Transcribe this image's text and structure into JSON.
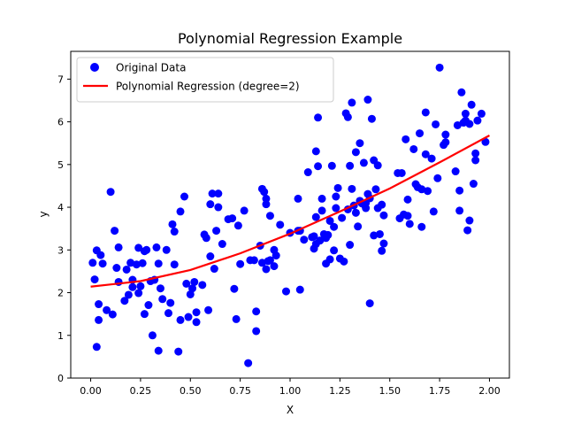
{
  "chart_data": {
    "type": "scatter",
    "title": "Polynomial Regression Example",
    "xlabel": "X",
    "ylabel": "y",
    "xlim": [
      -0.1,
      2.1
    ],
    "ylim": [
      0,
      7.65
    ],
    "xticks": [
      0.0,
      0.25,
      0.5,
      0.75,
      1.0,
      1.25,
      1.5,
      1.75,
      2.0
    ],
    "xtick_labels": [
      "0.00",
      "0.25",
      "0.50",
      "0.75",
      "1.00",
      "1.25",
      "1.50",
      "1.75",
      "2.00"
    ],
    "yticks": [
      0,
      1,
      2,
      3,
      4,
      5,
      6,
      7
    ],
    "ytick_labels": [
      "0",
      "1",
      "2",
      "3",
      "4",
      "5",
      "6",
      "7"
    ],
    "grid": false,
    "legend_position": "top-left",
    "series": [
      {
        "name": "Original Data",
        "kind": "scatter",
        "color": "#0000ff",
        "points": [
          [
            0.01,
            2.7
          ],
          [
            0.02,
            2.31
          ],
          [
            0.03,
            2.99
          ],
          [
            0.03,
            0.73
          ],
          [
            0.04,
            1.36
          ],
          [
            0.04,
            1.73
          ],
          [
            0.05,
            2.88
          ],
          [
            0.06,
            2.68
          ],
          [
            0.08,
            1.59
          ],
          [
            0.1,
            4.36
          ],
          [
            0.11,
            1.49
          ],
          [
            0.12,
            3.45
          ],
          [
            0.13,
            2.58
          ],
          [
            0.14,
            3.06
          ],
          [
            0.14,
            2.25
          ],
          [
            0.17,
            1.81
          ],
          [
            0.18,
            2.54
          ],
          [
            0.19,
            1.95
          ],
          [
            0.2,
            2.7
          ],
          [
            0.21,
            2.3
          ],
          [
            0.21,
            2.13
          ],
          [
            0.23,
            2.66
          ],
          [
            0.24,
            1.99
          ],
          [
            0.24,
            3.05
          ],
          [
            0.25,
            2.15
          ],
          [
            0.26,
            2.69
          ],
          [
            0.27,
            2.97
          ],
          [
            0.27,
            1.5
          ],
          [
            0.28,
            3.0
          ],
          [
            0.29,
            1.71
          ],
          [
            0.3,
            2.27
          ],
          [
            0.31,
            1.0
          ],
          [
            0.32,
            2.3
          ],
          [
            0.33,
            3.06
          ],
          [
            0.34,
            2.68
          ],
          [
            0.34,
            0.64
          ],
          [
            0.35,
            2.1
          ],
          [
            0.36,
            1.85
          ],
          [
            0.38,
            3.0
          ],
          [
            0.39,
            1.52
          ],
          [
            0.4,
            1.76
          ],
          [
            0.41,
            3.6
          ],
          [
            0.42,
            2.66
          ],
          [
            0.42,
            3.43
          ],
          [
            0.44,
            0.62
          ],
          [
            0.45,
            1.36
          ],
          [
            0.45,
            3.9
          ],
          [
            0.47,
            4.25
          ],
          [
            0.48,
            2.21
          ],
          [
            0.49,
            1.43
          ],
          [
            0.5,
            1.96
          ],
          [
            0.51,
            2.1
          ],
          [
            0.52,
            2.25
          ],
          [
            0.53,
            1.54
          ],
          [
            0.53,
            1.31
          ],
          [
            0.56,
            2.18
          ],
          [
            0.57,
            3.36
          ],
          [
            0.58,
            3.28
          ],
          [
            0.59,
            1.59
          ],
          [
            0.6,
            4.07
          ],
          [
            0.6,
            2.85
          ],
          [
            0.61,
            4.32
          ],
          [
            0.62,
            2.56
          ],
          [
            0.63,
            3.45
          ],
          [
            0.64,
            4.32
          ],
          [
            0.64,
            4.0
          ],
          [
            0.66,
            3.14
          ],
          [
            0.69,
            3.72
          ],
          [
            0.71,
            3.74
          ],
          [
            0.72,
            2.09
          ],
          [
            0.73,
            1.38
          ],
          [
            0.74,
            3.57
          ],
          [
            0.75,
            2.67
          ],
          [
            0.77,
            3.92
          ],
          [
            0.79,
            0.35
          ],
          [
            0.8,
            2.76
          ],
          [
            0.82,
            2.76
          ],
          [
            0.83,
            1.1
          ],
          [
            0.83,
            1.56
          ],
          [
            0.85,
            3.1
          ],
          [
            0.86,
            4.43
          ],
          [
            0.86,
            2.7
          ],
          [
            0.87,
            4.36
          ],
          [
            0.88,
            4.2
          ],
          [
            0.88,
            4.07
          ],
          [
            0.88,
            2.55
          ],
          [
            0.89,
            2.74
          ],
          [
            0.9,
            3.8
          ],
          [
            0.9,
            2.76
          ],
          [
            0.92,
            2.62
          ],
          [
            0.92,
            3.0
          ],
          [
            0.93,
            2.87
          ],
          [
            0.95,
            3.59
          ],
          [
            0.98,
            2.03
          ],
          [
            1.0,
            3.4
          ],
          [
            1.04,
            4.2
          ],
          [
            1.04,
            3.45
          ],
          [
            1.05,
            2.07
          ],
          [
            1.05,
            3.45
          ],
          [
            1.07,
            3.24
          ],
          [
            1.09,
            4.82
          ],
          [
            1.11,
            3.3
          ],
          [
            1.12,
            3.32
          ],
          [
            1.12,
            3.03
          ],
          [
            1.13,
            3.14
          ],
          [
            1.13,
            5.31
          ],
          [
            1.13,
            3.77
          ],
          [
            1.14,
            6.1
          ],
          [
            1.14,
            4.96
          ],
          [
            1.15,
            3.22
          ],
          [
            1.16,
            4.2
          ],
          [
            1.16,
            3.92
          ],
          [
            1.17,
            3.37
          ],
          [
            1.18,
            2.68
          ],
          [
            1.18,
            3.28
          ],
          [
            1.19,
            3.35
          ],
          [
            1.2,
            3.68
          ],
          [
            1.2,
            2.78
          ],
          [
            1.21,
            4.97
          ],
          [
            1.22,
            3.54
          ],
          [
            1.22,
            2.99
          ],
          [
            1.23,
            4.25
          ],
          [
            1.23,
            3.98
          ],
          [
            1.24,
            4.45
          ],
          [
            1.25,
            2.8
          ],
          [
            1.26,
            3.75
          ],
          [
            1.27,
            2.73
          ],
          [
            1.28,
            6.2
          ],
          [
            1.29,
            6.11
          ],
          [
            1.29,
            3.95
          ],
          [
            1.3,
            4.97
          ],
          [
            1.3,
            3.12
          ],
          [
            1.31,
            6.45
          ],
          [
            1.31,
            4.43
          ],
          [
            1.32,
            4.04
          ],
          [
            1.33,
            3.87
          ],
          [
            1.33,
            5.29
          ],
          [
            1.34,
            3.55
          ],
          [
            1.35,
            5.5
          ],
          [
            1.35,
            4.15
          ],
          [
            1.36,
            4.09
          ],
          [
            1.37,
            5.04
          ],
          [
            1.37,
            4.07
          ],
          [
            1.38,
            4.1
          ],
          [
            1.38,
            3.98
          ],
          [
            1.39,
            4.31
          ],
          [
            1.39,
            6.52
          ],
          [
            1.4,
            4.21
          ],
          [
            1.4,
            1.75
          ],
          [
            1.41,
            6.07
          ],
          [
            1.42,
            5.1
          ],
          [
            1.42,
            3.34
          ],
          [
            1.43,
            4.42
          ],
          [
            1.44,
            3.98
          ],
          [
            1.44,
            4.98
          ],
          [
            1.45,
            3.37
          ],
          [
            1.46,
            4.06
          ],
          [
            1.46,
            2.98
          ],
          [
            1.47,
            3.81
          ],
          [
            1.47,
            3.15
          ],
          [
            1.54,
            4.8
          ],
          [
            1.55,
            3.74
          ],
          [
            1.56,
            4.8
          ],
          [
            1.57,
            3.83
          ],
          [
            1.58,
            5.59
          ],
          [
            1.59,
            3.8
          ],
          [
            1.59,
            4.18
          ],
          [
            1.6,
            3.61
          ],
          [
            1.62,
            5.36
          ],
          [
            1.63,
            4.54
          ],
          [
            1.64,
            4.47
          ],
          [
            1.65,
            5.73
          ],
          [
            1.66,
            4.42
          ],
          [
            1.66,
            3.54
          ],
          [
            1.68,
            5.24
          ],
          [
            1.68,
            6.22
          ],
          [
            1.69,
            4.38
          ],
          [
            1.71,
            5.14
          ],
          [
            1.72,
            3.9
          ],
          [
            1.73,
            5.94
          ],
          [
            1.74,
            4.68
          ],
          [
            1.75,
            7.27
          ],
          [
            1.77,
            5.46
          ],
          [
            1.78,
            5.7
          ],
          [
            1.78,
            5.52
          ],
          [
            1.83,
            4.84
          ],
          [
            1.84,
            5.92
          ],
          [
            1.85,
            4.39
          ],
          [
            1.85,
            3.92
          ],
          [
            1.86,
            6.69
          ],
          [
            1.87,
            5.98
          ],
          [
            1.88,
            6.19
          ],
          [
            1.88,
            6.03
          ],
          [
            1.89,
            3.46
          ],
          [
            1.9,
            5.95
          ],
          [
            1.9,
            3.69
          ],
          [
            1.91,
            6.4
          ],
          [
            1.92,
            4.55
          ],
          [
            1.93,
            5.26
          ],
          [
            1.93,
            5.1
          ],
          [
            1.94,
            6.03
          ],
          [
            1.96,
            6.19
          ],
          [
            1.98,
            5.53
          ]
        ]
      },
      {
        "name": "Polynomial Regression (degree=2)",
        "kind": "line",
        "color": "#ff0000",
        "x": [
          0.0,
          0.25,
          0.5,
          0.75,
          1.0,
          1.25,
          1.5,
          1.75,
          2.0
        ],
        "y": [
          2.14,
          2.27,
          2.53,
          2.92,
          3.38,
          3.9,
          4.44,
          5.05,
          5.68
        ]
      }
    ]
  }
}
